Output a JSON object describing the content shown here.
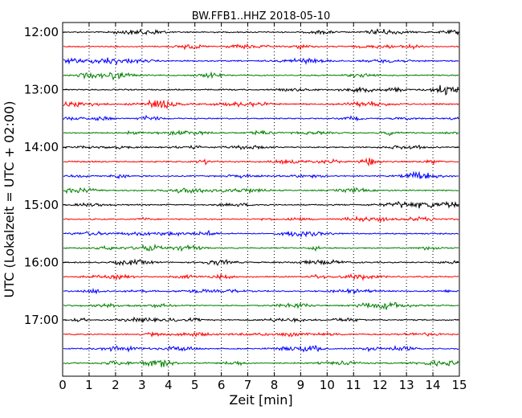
{
  "chart_data": {
    "type": "line",
    "title": "BW.FFB1..HHZ 2018-05-10",
    "xlabel": "Zeit  [min]",
    "ylabel": "UTC (Lokalzeit = UTC + 02:00)",
    "xlim": [
      0,
      15
    ],
    "x_ticks": [
      0,
      1,
      2,
      3,
      4,
      5,
      6,
      7,
      8,
      9,
      10,
      11,
      12,
      13,
      14,
      15
    ],
    "y_tick_labels": [
      "12:00",
      "13:00",
      "14:00",
      "15:00",
      "16:00",
      "17:00"
    ],
    "grid": "vertical dotted",
    "trace_colors": [
      "#000000",
      "#ff0000",
      "#0000ff",
      "#008000"
    ],
    "traces": [
      {
        "start": "12:00",
        "color": "#000000"
      },
      {
        "start": "12:15",
        "color": "#ff0000"
      },
      {
        "start": "12:30",
        "color": "#0000ff"
      },
      {
        "start": "12:45",
        "color": "#008000"
      },
      {
        "start": "13:00",
        "color": "#000000"
      },
      {
        "start": "13:15",
        "color": "#ff0000"
      },
      {
        "start": "13:30",
        "color": "#0000ff"
      },
      {
        "start": "13:45",
        "color": "#008000"
      },
      {
        "start": "14:00",
        "color": "#000000"
      },
      {
        "start": "14:15",
        "color": "#ff0000"
      },
      {
        "start": "14:30",
        "color": "#0000ff"
      },
      {
        "start": "14:45",
        "color": "#008000"
      },
      {
        "start": "15:00",
        "color": "#000000"
      },
      {
        "start": "15:15",
        "color": "#ff0000"
      },
      {
        "start": "15:30",
        "color": "#0000ff"
      },
      {
        "start": "15:45",
        "color": "#008000"
      },
      {
        "start": "16:00",
        "color": "#000000"
      },
      {
        "start": "16:15",
        "color": "#ff0000"
      },
      {
        "start": "16:30",
        "color": "#0000ff"
      },
      {
        "start": "16:45",
        "color": "#008000"
      },
      {
        "start": "17:00",
        "color": "#000000"
      },
      {
        "start": "17:15",
        "color": "#ff0000"
      },
      {
        "start": "17:30",
        "color": "#0000ff"
      },
      {
        "start": "17:45",
        "color": "#008000"
      }
    ]
  }
}
